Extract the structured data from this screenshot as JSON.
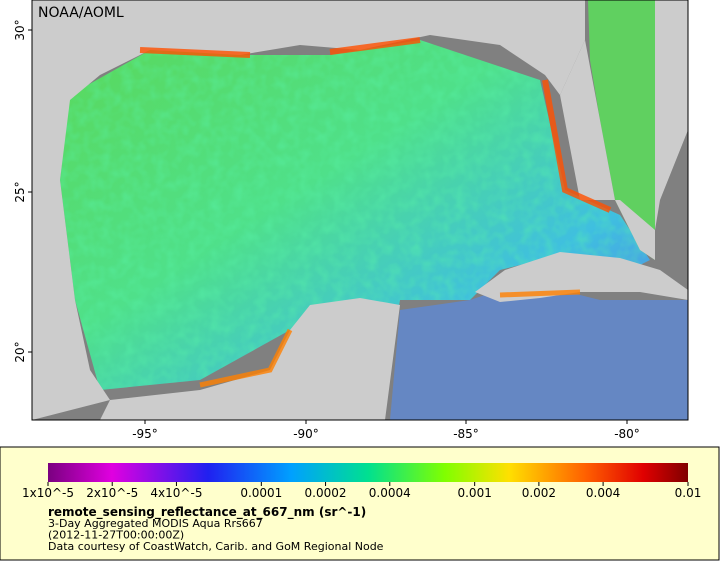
{
  "watermark": "NOAA/AOML",
  "axes": {
    "lat_labels": [
      "30°",
      "25°",
      "20°"
    ],
    "lon_labels": [
      "-95°",
      "-90°",
      "-85°",
      "-80°"
    ]
  },
  "colorbar": {
    "scale": "log",
    "lim": [
      1e-05,
      0.01
    ],
    "ticks": [
      {
        "value": 1e-05,
        "label": "1x10^-5"
      },
      {
        "value": 2e-05,
        "label": "2x10^-5"
      },
      {
        "value": 4e-05,
        "label": "4x10^-5"
      },
      {
        "value": 0.0001,
        "label": "0.0001"
      },
      {
        "value": 0.0002,
        "label": "0.0002"
      },
      {
        "value": 0.0004,
        "label": "0.0004"
      },
      {
        "value": 0.001,
        "label": "0.001"
      },
      {
        "value": 0.002,
        "label": "0.002"
      },
      {
        "value": 0.004,
        "label": "0.004"
      },
      {
        "value": 0.01,
        "label": "0.01"
      }
    ]
  },
  "legend": {
    "variable": "remote_sensing_reflectance_at_667_nm (sr^-1)",
    "lines": [
      "3-Day Aggregated MODIS Aqua Rrs667",
      "(2012-11-27T00:00:00Z)",
      "Data courtesy of CoastWatch, Carib. and GoM Regional Node"
    ]
  }
}
